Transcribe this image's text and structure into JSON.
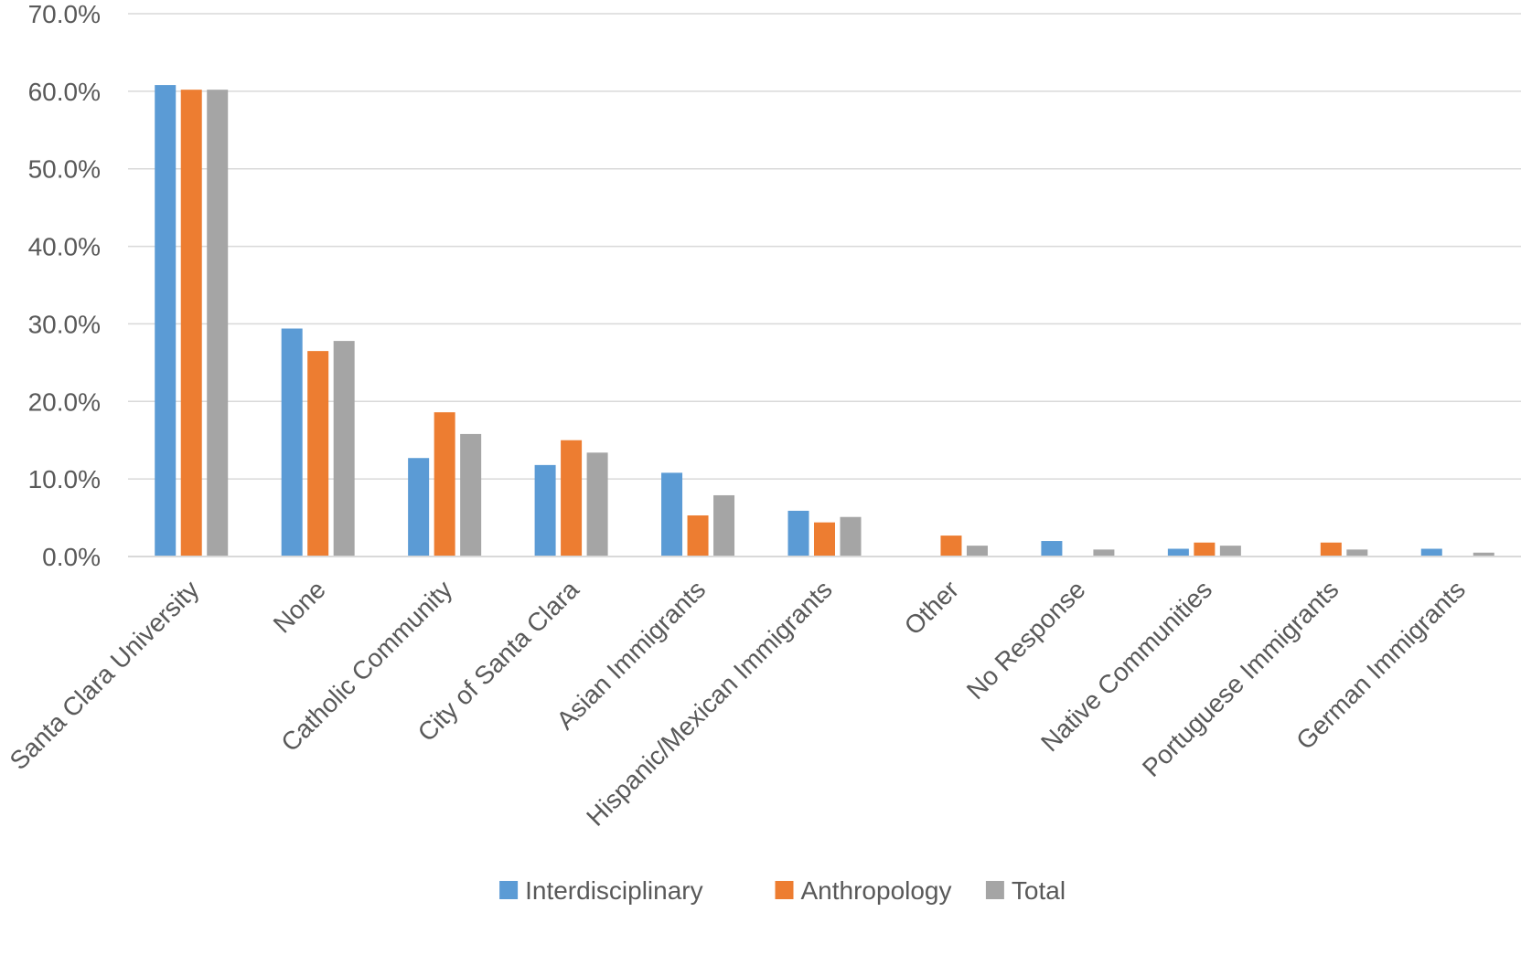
{
  "chart_data": {
    "type": "bar",
    "categories": [
      "Santa Clara University",
      "None",
      "Catholic Community",
      "City of Santa Clara",
      "Asian Immigrants",
      "Hispanic/Mexican Immigrants",
      "Other",
      "No Response",
      "Native Communities",
      "Portuguese Immigrants",
      "German Immigrants"
    ],
    "series": [
      {
        "name": "Interdisciplinary",
        "color": "#5B9BD5",
        "values": [
          60.8,
          29.4,
          12.7,
          11.8,
          10.8,
          5.9,
          0.0,
          2.0,
          1.0,
          0.0,
          1.0
        ]
      },
      {
        "name": "Anthropology",
        "color": "#ED7D31",
        "values": [
          60.2,
          26.5,
          18.6,
          15.0,
          5.3,
          4.4,
          2.7,
          0.0,
          1.8,
          1.8,
          0.0
        ]
      },
      {
        "name": "Total",
        "color": "#A5A5A5",
        "values": [
          60.2,
          27.8,
          15.8,
          13.4,
          7.9,
          5.1,
          1.4,
          0.9,
          1.4,
          0.9,
          0.5
        ]
      }
    ],
    "ylim": [
      0,
      70
    ],
    "yticks": [
      "0.0%",
      "10.0%",
      "20.0%",
      "30.0%",
      "40.0%",
      "50.0%",
      "60.0%",
      "70.0%"
    ],
    "title": "",
    "xlabel": "",
    "ylabel": "",
    "grid": true,
    "legend_position": "bottom",
    "colors": {
      "gridline": "#D9D9D9",
      "text": "#595959"
    }
  }
}
